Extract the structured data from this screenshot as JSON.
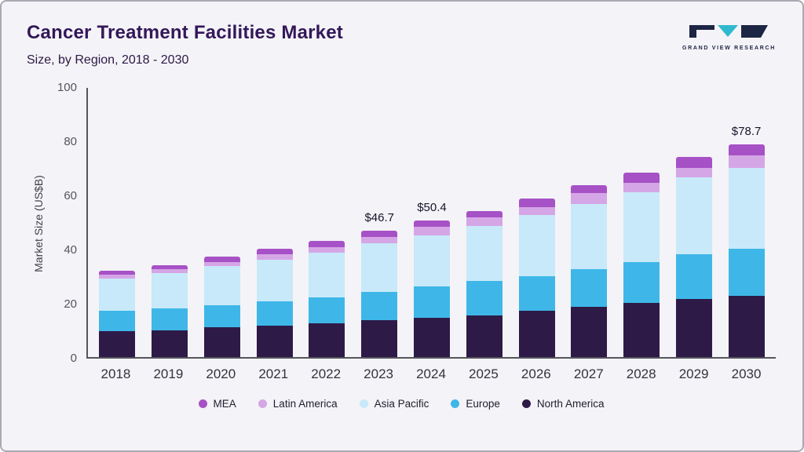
{
  "header": {
    "title": "Cancer Treatment Facilities Market",
    "subtitle": "Size, by Region, 2018 - 2030"
  },
  "logo": {
    "text": "GRAND VIEW RESEARCH",
    "navy": "#1d2545",
    "teal": "#2fb9cf"
  },
  "chart_data": {
    "type": "bar",
    "stacked": true,
    "title": "Cancer Treatment Facilities Market Size, by Region, 2018 - 2030",
    "xlabel": "",
    "ylabel": "Market Size (US$B)",
    "ylim": [
      0,
      100
    ],
    "yticks": [
      0,
      20,
      40,
      60,
      80,
      100
    ],
    "grid": false,
    "legend_position": "bottom",
    "categories": [
      "2018",
      "2019",
      "2020",
      "2021",
      "2022",
      "2023",
      "2024",
      "2025",
      "2026",
      "2027",
      "2028",
      "2029",
      "2030"
    ],
    "series": [
      {
        "name": "North America",
        "color": "#2e1a47",
        "values": [
          9.5,
          10,
          11,
          11.5,
          12.5,
          13.5,
          14.5,
          15.5,
          17,
          18.5,
          20,
          21.5,
          22.5
        ]
      },
      {
        "name": "Europe",
        "color": "#3eb7e8",
        "values": [
          7.5,
          8,
          8,
          9,
          9.5,
          10.5,
          11.5,
          12.5,
          13,
          14,
          15,
          16.5,
          17.5
        ]
      },
      {
        "name": "Asia Pacific",
        "color": "#c8e9f9",
        "values": [
          12,
          13,
          14.5,
          15.5,
          16.5,
          18,
          19,
          20.5,
          22.5,
          24,
          26,
          28.5,
          30
        ]
      },
      {
        "name": "Latin America",
        "color": "#d5a6e6",
        "values": [
          1.5,
          1.5,
          1.5,
          2,
          2,
          2.5,
          3,
          3,
          3,
          4,
          3.5,
          3.5,
          4.5
        ]
      },
      {
        "name": "MEA",
        "color": "#a751c6",
        "values": [
          1.5,
          1.5,
          2,
          2,
          2.5,
          2.2,
          2.4,
          2.5,
          3,
          3,
          3.5,
          4,
          4.2
        ]
      }
    ],
    "totals": [
      32,
      34,
      37,
      40,
      43,
      46.7,
      50.4,
      54,
      58.5,
      63.5,
      68,
      74,
      78.7
    ],
    "annotations": [
      {
        "category": "2023",
        "label": "$46.7"
      },
      {
        "category": "2024",
        "label": "$50.4"
      },
      {
        "category": "2030",
        "label": "$78.7"
      }
    ],
    "legend": [
      "MEA",
      "Latin America",
      "Asia Pacific",
      "Europe",
      "North America"
    ]
  }
}
